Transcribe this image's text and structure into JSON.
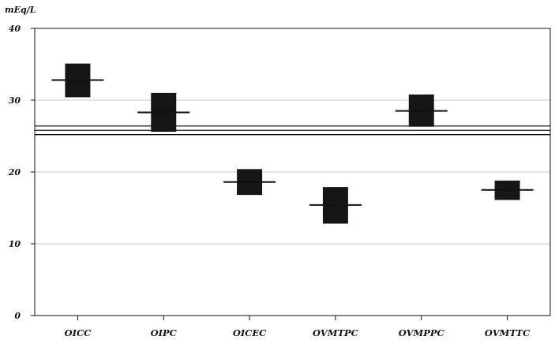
{
  "chart_data": {
    "type": "box",
    "ylabel": "mEq/L",
    "ylim": [
      0,
      40
    ],
    "yticks": [
      0,
      10,
      20,
      30,
      40
    ],
    "grid": true,
    "categories": [
      "OICC",
      "OIPC",
      "OICEC",
      "OVMTPC",
      "OVMPPC",
      "OVMTTC"
    ],
    "boxes": [
      {
        "low": 30.4,
        "high": 35.1,
        "mean": 32.8
      },
      {
        "low": 25.6,
        "high": 31.0,
        "mean": 28.3
      },
      {
        "low": 16.8,
        "high": 20.4,
        "mean": 18.6
      },
      {
        "low": 12.8,
        "high": 17.9,
        "mean": 15.4
      },
      {
        "low": 26.3,
        "high": 30.8,
        "mean": 28.5
      },
      {
        "low": 16.1,
        "high": 18.8,
        "mean": 17.5
      }
    ],
    "reference_lines": [
      26.4,
      25.8,
      25.2
    ]
  }
}
